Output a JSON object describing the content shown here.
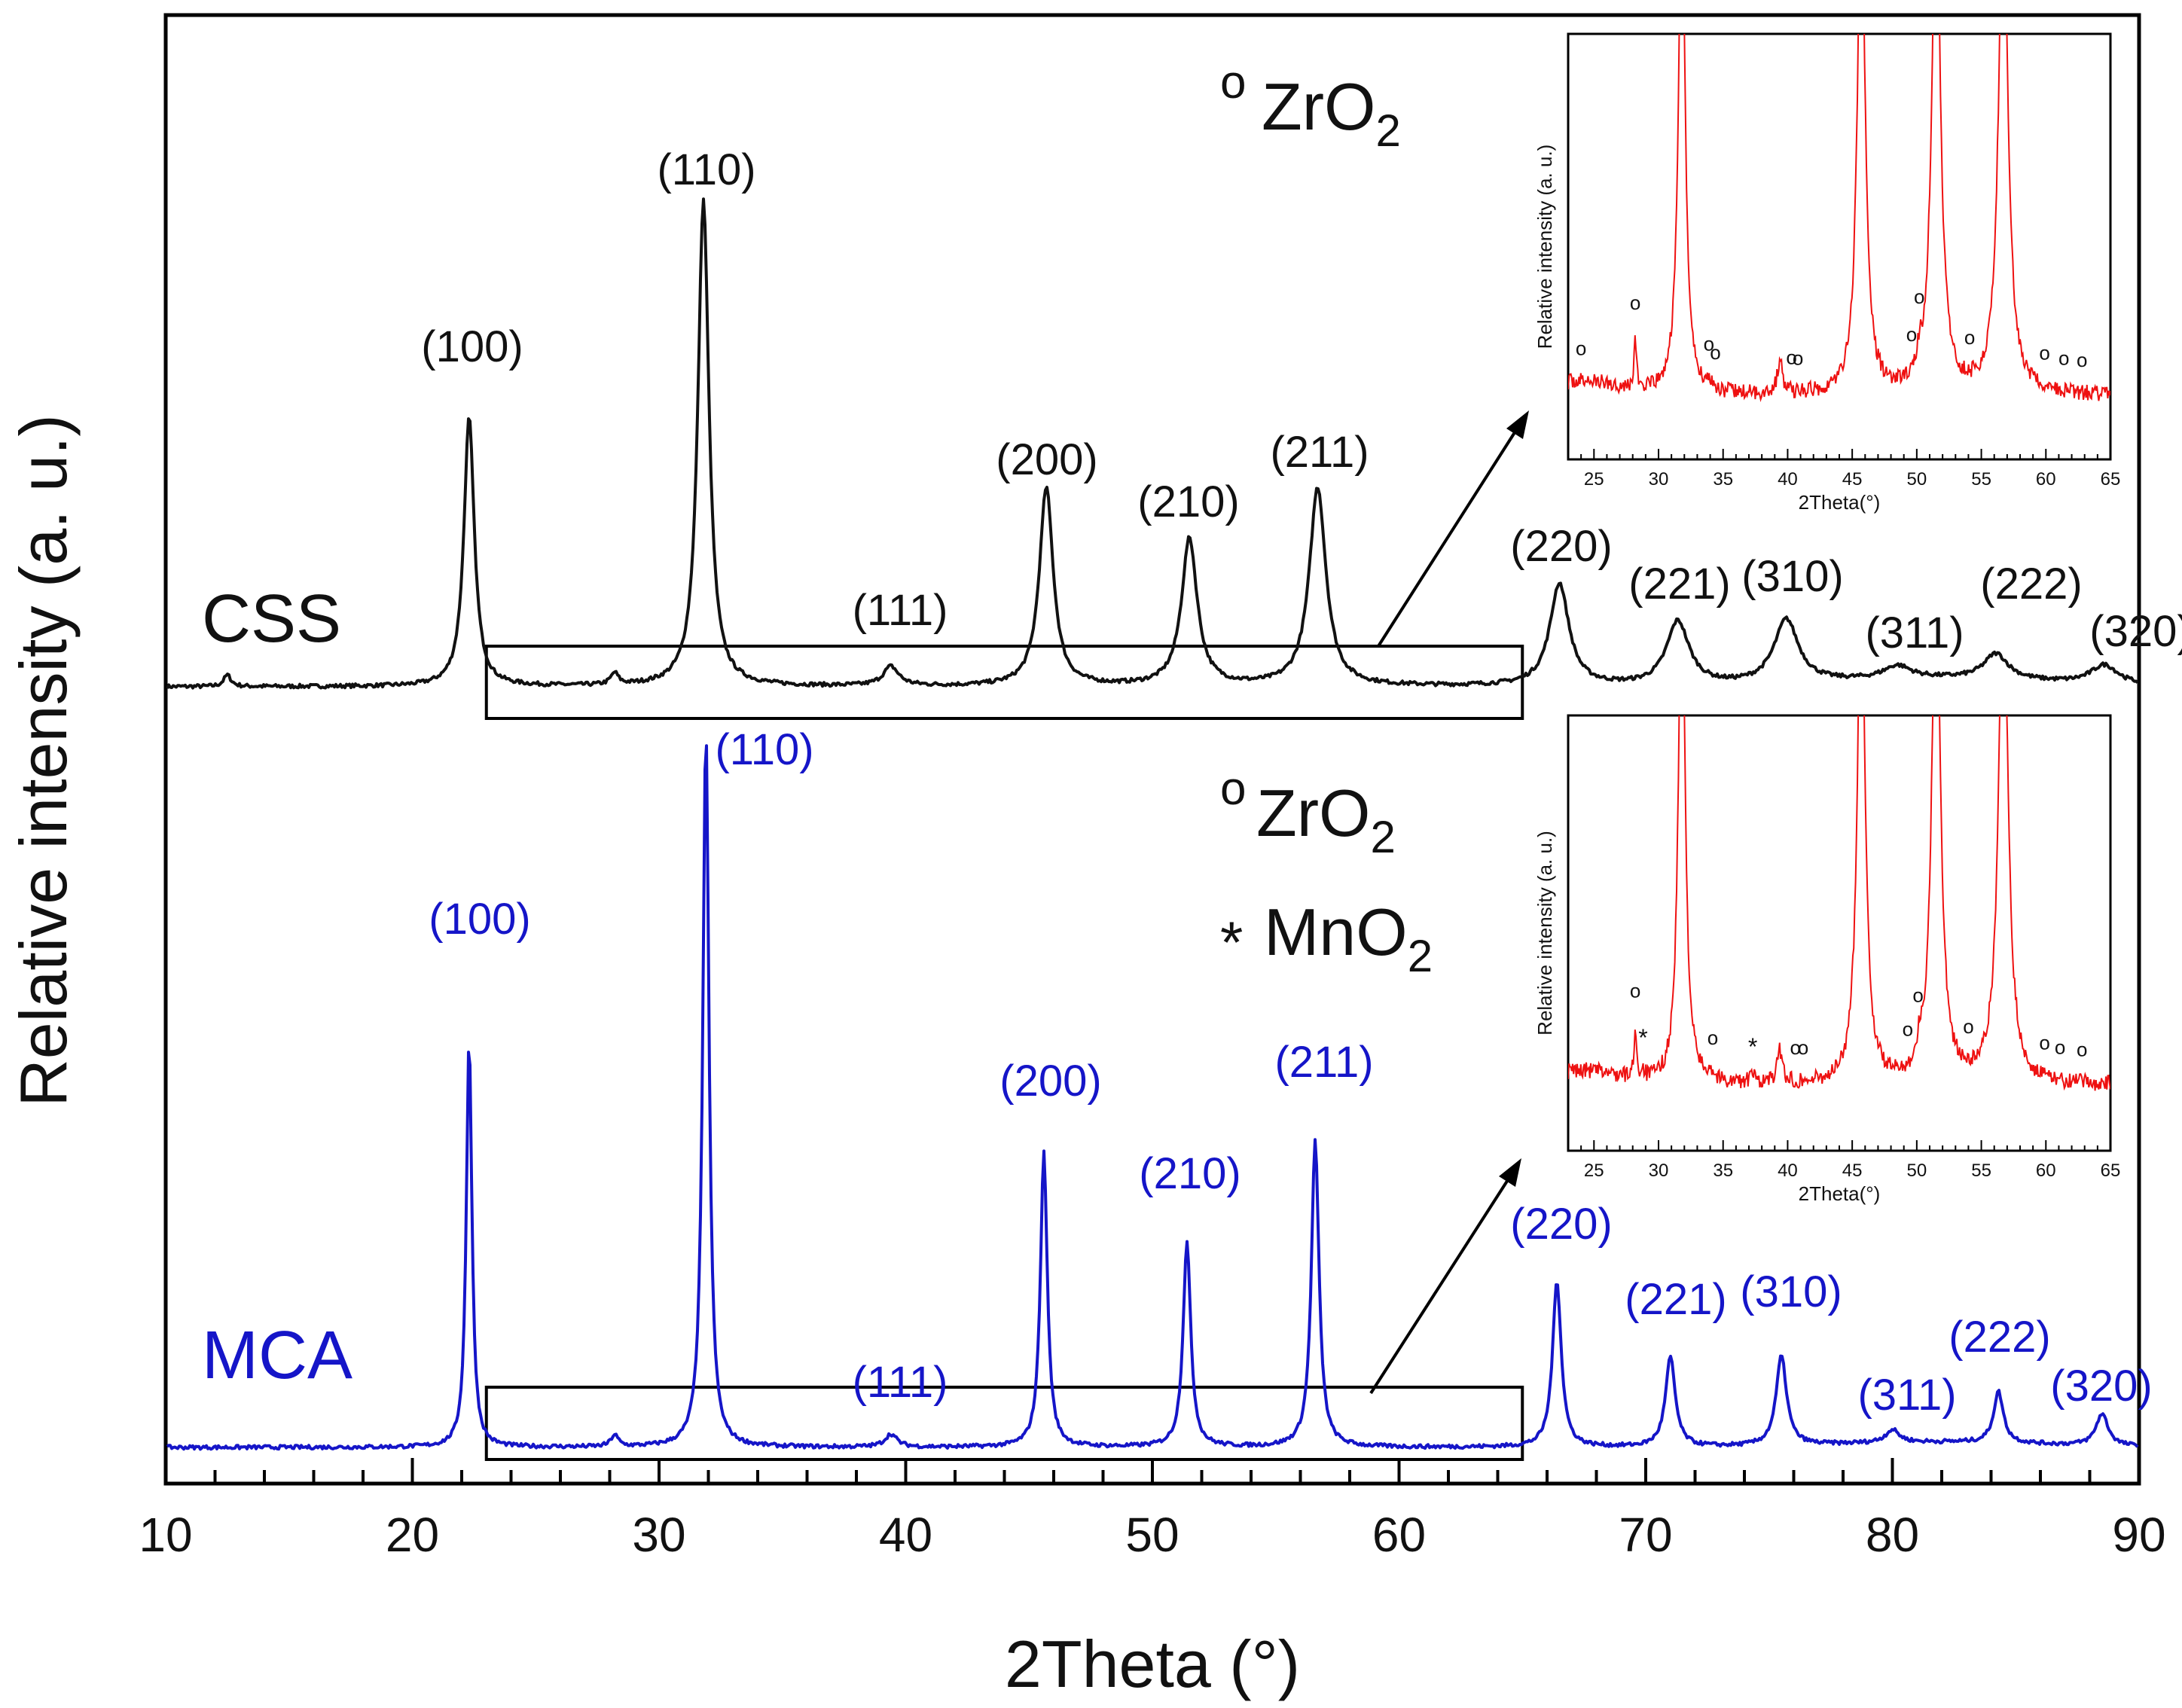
{
  "chart_data": {
    "type": "line",
    "title": "",
    "xlabel": "2Theta (°)",
    "ylabel": "Relative intensity (a. u.)",
    "xlim": [
      10,
      90
    ],
    "x_ticks": [
      "10",
      "20",
      "30",
      "40",
      "50",
      "60",
      "70",
      "80",
      "90"
    ],
    "colors": {
      "css": "#111111",
      "mca": "#1515c8",
      "inset": "#ee1111",
      "axis": "#000000"
    },
    "series": [
      {
        "name": "CSS",
        "label": "CSS",
        "peaks": [
          {
            "hkl": "(100)",
            "x": 22.3,
            "height": 0.42,
            "width": 0.3
          },
          {
            "hkl": "(110)",
            "x": 31.8,
            "height": 0.76,
            "width": 0.32
          },
          {
            "hkl": "(111)",
            "x": 39.4,
            "height": 0.03,
            "width": 0.45
          },
          {
            "hkl": "(200)",
            "x": 45.7,
            "height": 0.31,
            "width": 0.4
          },
          {
            "hkl": "(210)",
            "x": 51.5,
            "height": 0.23,
            "width": 0.45
          },
          {
            "hkl": "(211)",
            "x": 56.7,
            "height": 0.31,
            "width": 0.48
          },
          {
            "hkl": "(220)",
            "x": 66.5,
            "height": 0.16,
            "width": 0.55
          },
          {
            "hkl": "(221)",
            "x": 71.3,
            "height": 0.1,
            "width": 0.65
          },
          {
            "hkl": "(310)",
            "x": 75.7,
            "height": 0.1,
            "width": 0.7
          },
          {
            "hkl": "(311)",
            "x": 80.2,
            "height": 0.02,
            "width": 0.8
          },
          {
            "hkl": "(222)",
            "x": 84.2,
            "height": 0.04,
            "width": 0.7
          },
          {
            "hkl": "(320)",
            "x": 88.6,
            "height": 0.03,
            "width": 0.8
          }
        ],
        "impurity_peaks": [
          28.2,
          12.5
        ]
      },
      {
        "name": "MCA",
        "label": "MCA",
        "peaks": [
          {
            "hkl": "(100)",
            "x": 22.3,
            "height": 0.64,
            "width": 0.16
          },
          {
            "hkl": "(110)",
            "x": 31.9,
            "height": 1.12,
            "width": 0.18
          },
          {
            "hkl": "(111)",
            "x": 39.4,
            "height": 0.02,
            "width": 0.35
          },
          {
            "hkl": "(200)",
            "x": 45.6,
            "height": 0.46,
            "width": 0.2
          },
          {
            "hkl": "(210)",
            "x": 51.4,
            "height": 0.32,
            "width": 0.22
          },
          {
            "hkl": "(211)",
            "x": 56.6,
            "height": 0.48,
            "width": 0.22
          },
          {
            "hkl": "(220)",
            "x": 66.4,
            "height": 0.26,
            "width": 0.25
          },
          {
            "hkl": "(221)",
            "x": 71.0,
            "height": 0.14,
            "width": 0.28
          },
          {
            "hkl": "(310)",
            "x": 75.5,
            "height": 0.14,
            "width": 0.3
          },
          {
            "hkl": "(311)",
            "x": 80.0,
            "height": 0.02,
            "width": 0.4
          },
          {
            "hkl": "(222)",
            "x": 84.3,
            "height": 0.08,
            "width": 0.28
          },
          {
            "hkl": "(320)",
            "x": 88.5,
            "height": 0.05,
            "width": 0.35
          }
        ],
        "impurity_peaks": [
          28.2
        ]
      }
    ],
    "zoom_range": [
      23,
      65
    ],
    "insets": [
      {
        "name": "CSS inset",
        "xlabel": "2Theta(°)",
        "ylabel": "Relative intensity (a. u.)",
        "xlim": [
          23,
          65
        ],
        "x_ticks": [
          "25",
          "30",
          "35",
          "40",
          "45",
          "50",
          "55",
          "60",
          "65"
        ],
        "zro2_markers": [
          24.0,
          28.2,
          33.9,
          34.4,
          40.3,
          40.8,
          49.6,
          50.2,
          54.1,
          59.9,
          61.4,
          62.8
        ],
        "mno2_markers": []
      },
      {
        "name": "MCA inset",
        "xlabel": "2Theta(°)",
        "ylabel": "Relative intensity (a. u.)",
        "xlim": [
          23,
          65
        ],
        "x_ticks": [
          "25",
          "30",
          "35",
          "40",
          "45",
          "50",
          "55",
          "60",
          "65"
        ],
        "zro2_markers": [
          28.2,
          34.2,
          40.6,
          41.2,
          49.3,
          50.1,
          54.0,
          59.9,
          61.1,
          62.8
        ],
        "mno2_markers": [
          28.8,
          37.3
        ]
      }
    ],
    "legends": [
      {
        "symbol": "o",
        "text": "ZrO",
        "sub": "2"
      },
      {
        "symbol": "o",
        "text": "ZrO",
        "sub": "2"
      },
      {
        "symbol": "*",
        "text": "MnO",
        "sub": "2"
      }
    ]
  }
}
